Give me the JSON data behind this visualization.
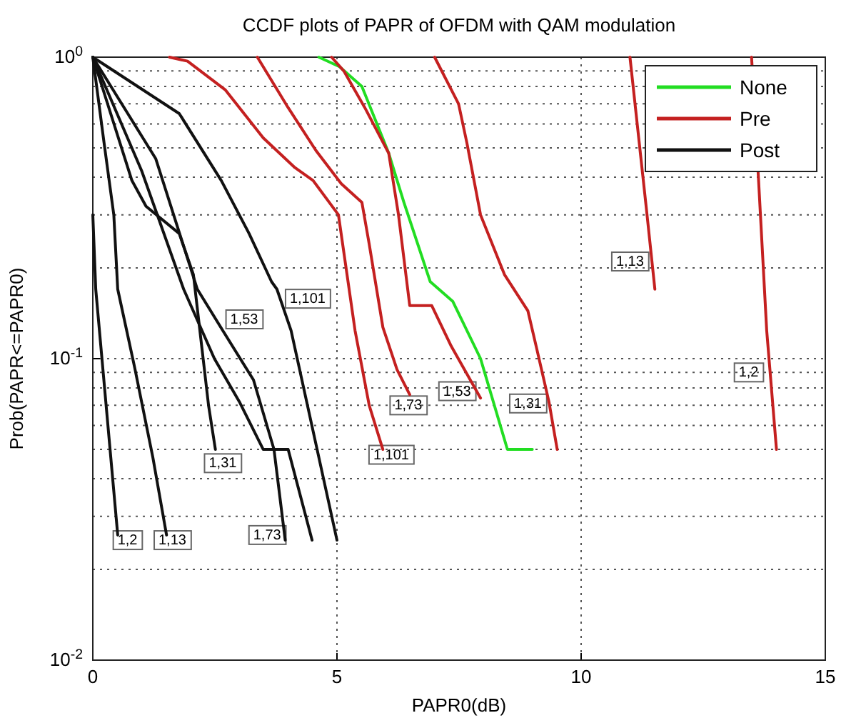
{
  "chart_data": {
    "type": "line",
    "title": "CCDF plots of PAPR of OFDM with QAM modulation",
    "xlabel": "PAPR0(dB)",
    "ylabel": "Prob(PAPR<=PAPR0)",
    "xlim": [
      0,
      15
    ],
    "xticks": [
      0,
      5,
      10,
      15
    ],
    "ylim": [
      0.01,
      1
    ],
    "yticks": [
      {
        "value": 0.01,
        "label": "10$^{-2}$"
      },
      {
        "value": 0.1,
        "label": "10$^{-1}$"
      },
      {
        "value": 1,
        "label": "10$^{0}$"
      }
    ],
    "log": "y",
    "grid": true,
    "legend": "top right",
    "line_style": "solid",
    "marker": "none",
    "series": [
      {
        "name": "None",
        "color": "#22dd22",
        "x": [
          4.63,
          5.05,
          5.51,
          6.06,
          6.37,
          6.91,
          7.37,
          7.94,
          8.49,
          9.0
        ],
        "values": [
          1,
          0.93,
          0.8,
          0.48,
          0.33,
          0.18,
          0.155,
          0.1,
          0.05,
          0.05
        ]
      },
      {
        "name": "Pre",
        "color": "#c42020",
        "x": [
          1.57,
          1.94,
          2.71,
          3.49,
          4.14,
          4.51,
          5.03,
          5.37,
          5.66,
          5.94
        ],
        "values": [
          1,
          0.97,
          0.78,
          0.54,
          0.43,
          0.39,
          0.3,
          0.124,
          0.07,
          0.05
        ]
      },
      {
        "color": "#c42020",
        "x": [
          3.37,
          4.0,
          4.57,
          5.09,
          5.51,
          5.66,
          5.94,
          6.23,
          6.49
        ],
        "values": [
          1,
          0.68,
          0.49,
          0.38,
          0.33,
          0.24,
          0.127,
          0.092,
          0.076
        ]
      },
      {
        "color": "#c42020",
        "x": [
          4.89,
          5.14,
          5.57,
          6.06,
          6.26,
          6.49,
          6.94,
          7.34,
          7.94
        ],
        "values": [
          1,
          0.9,
          0.68,
          0.48,
          0.3,
          0.15,
          0.15,
          0.11,
          0.074
        ]
      },
      {
        "color": "#c42020",
        "x": [
          7.0,
          7.49,
          7.66,
          7.94,
          8.43,
          8.91,
          9.09,
          9.34,
          9.51
        ],
        "values": [
          1,
          0.7,
          0.52,
          0.3,
          0.19,
          0.144,
          0.108,
          0.072,
          0.05
        ]
      },
      {
        "color": "#c42020",
        "x": [
          11.0,
          11.34,
          11.51
        ],
        "values": [
          1,
          0.31,
          0.17
        ]
      },
      {
        "color": "#c42020",
        "x": [
          13.49,
          13.63,
          13.8,
          14.0
        ],
        "values": [
          1,
          0.4,
          0.124,
          0.05
        ]
      },
      {
        "name": "Post",
        "color": "#111111",
        "x": [
          0,
          0.06,
          0.51
        ],
        "values": [
          0.3,
          0.17,
          0.026
        ]
      },
      {
        "color": "#111111",
        "x": [
          0,
          0.23,
          0.43,
          0.51,
          0.86,
          1.23,
          1.51
        ],
        "values": [
          1,
          0.52,
          0.3,
          0.17,
          0.093,
          0.047,
          0.026
        ]
      },
      {
        "color": "#111111",
        "x": [
          0,
          0.8,
          1.09,
          1.77,
          2.06,
          2.37,
          2.51
        ],
        "values": [
          1,
          0.39,
          0.32,
          0.26,
          0.19,
          0.07,
          0.05
        ]
      },
      {
        "color": "#111111",
        "x": [
          0,
          1.0,
          1.86,
          2.49,
          3.0,
          3.49,
          4.0,
          4.49
        ],
        "values": [
          1,
          0.42,
          0.17,
          0.1,
          0.072,
          0.05,
          0.05,
          0.025
        ]
      },
      {
        "color": "#111111",
        "x": [
          0,
          1.29,
          2.14,
          2.66,
          3.29,
          3.71,
          3.94
        ],
        "values": [
          1,
          0.46,
          0.17,
          0.124,
          0.085,
          0.05,
          0.025
        ]
      },
      {
        "color": "#111111",
        "x": [
          0,
          1.77,
          2.63,
          3.2,
          3.66,
          3.77,
          4.06,
          5.0
        ],
        "values": [
          1,
          0.65,
          0.39,
          0.26,
          0.18,
          0.17,
          0.124,
          0.025
        ]
      }
    ],
    "annotations": [
      {
        "text": "1,2",
        "x": 0.71,
        "y": 0.025
      },
      {
        "text": "1,13",
        "x": 1.63,
        "y": 0.025
      },
      {
        "text": "1,31",
        "x": 2.66,
        "y": 0.045
      },
      {
        "text": "1,53",
        "x": 3.1,
        "y": 0.135
      },
      {
        "text": "1,73",
        "x": 3.57,
        "y": 0.026
      },
      {
        "text": "1,101",
        "x": 4.4,
        "y": 0.158
      },
      {
        "text": "1,101",
        "x": 6.11,
        "y": 0.048
      },
      {
        "text": "1,73",
        "x": 6.46,
        "y": 0.07
      },
      {
        "text": "1,53",
        "x": 7.46,
        "y": 0.078
      },
      {
        "text": "1,31",
        "x": 8.91,
        "y": 0.071
      },
      {
        "text": "1,13",
        "x": 11.0,
        "y": 0.21
      },
      {
        "text": "1,2",
        "x": 13.43,
        "y": 0.09
      }
    ]
  }
}
